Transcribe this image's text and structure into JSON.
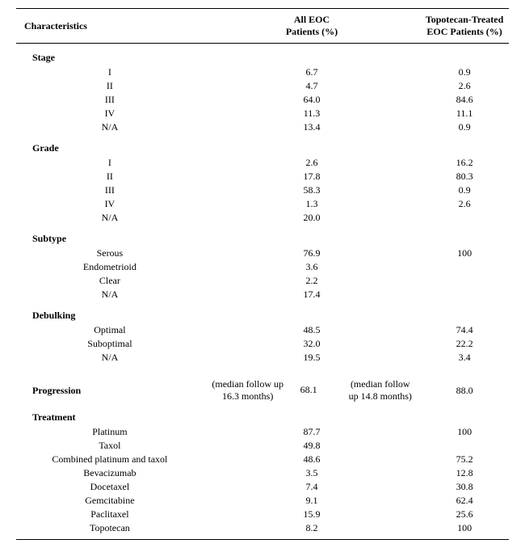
{
  "headers": {
    "char": "Characteristics",
    "all": "All EOC\nPatients (%)",
    "topo": "Topotecan-Treated\nEOC Patients (%)"
  },
  "sections": [
    {
      "title": "Stage",
      "rows": [
        {
          "label": "I",
          "all": "6.7",
          "topo": "0.9"
        },
        {
          "label": "II",
          "all": "4.7",
          "topo": "2.6"
        },
        {
          "label": "III",
          "all": "64.0",
          "topo": "84.6"
        },
        {
          "label": "IV",
          "all": "11.3",
          "topo": "11.1"
        },
        {
          "label": "N/A",
          "all": "13.4",
          "topo": "0.9"
        }
      ]
    },
    {
      "title": "Grade",
      "rows": [
        {
          "label": "I",
          "all": "2.6",
          "topo": "16.2"
        },
        {
          "label": "II",
          "all": "17.8",
          "topo": "80.3"
        },
        {
          "label": "III",
          "all": "58.3",
          "topo": "0.9"
        },
        {
          "label": "IV",
          "all": "1.3",
          "topo": "2.6"
        },
        {
          "label": "N/A",
          "all": "20.0",
          "topo": ""
        }
      ]
    },
    {
      "title": "Subtype",
      "rows": [
        {
          "label": "Serous",
          "all": "76.9",
          "topo": "100"
        },
        {
          "label": "Endometrioid",
          "all": "3.6",
          "topo": ""
        },
        {
          "label": "Clear",
          "all": "2.2",
          "topo": ""
        },
        {
          "label": "N/A",
          "all": "17.4",
          "topo": ""
        }
      ]
    },
    {
      "title": "Debulking",
      "rows": [
        {
          "label": "Optimal",
          "all": "48.5",
          "topo": "74.4"
        },
        {
          "label": "Suboptimal",
          "all": "32.0",
          "topo": "22.2"
        },
        {
          "label": "N/A",
          "all": "19.5",
          "topo": "3.4"
        }
      ]
    }
  ],
  "progression": {
    "title": "Progression",
    "all_note": "(median follow up\n16.3 months)",
    "all_val": "68.1",
    "topo_note": "(median follow\nup 14.8 months)",
    "topo_val": "88.0"
  },
  "treatment": {
    "title": "Treatment",
    "rows": [
      {
        "label": "Platinum",
        "all": "87.7",
        "topo": "100"
      },
      {
        "label": "Taxol",
        "all": "49.8",
        "topo": ""
      },
      {
        "label": "Combined platinum and taxol",
        "all": "48.6",
        "topo": "75.2"
      },
      {
        "label": "Bevacizumab",
        "all": "3.5",
        "topo": "12.8"
      },
      {
        "label": "Docetaxel",
        "all": "7.4",
        "topo": "30.8"
      },
      {
        "label": "Gemcitabine",
        "all": "9.1",
        "topo": "62.4"
      },
      {
        "label": "Paclitaxel",
        "all": "15.9",
        "topo": "25.6"
      },
      {
        "label": "Topotecan",
        "all": "8.2",
        "topo": "100"
      }
    ]
  }
}
